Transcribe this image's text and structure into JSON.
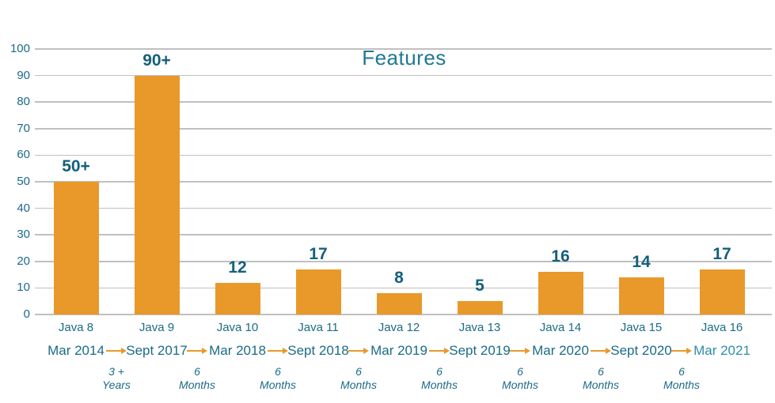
{
  "colors": {
    "bar": "#E8992A",
    "arrow": "#E8992A",
    "teal": "#1B6B87",
    "teal_dark": "#14607C",
    "title_teal": "#1F7893",
    "date_highlight": "#2F8DA8",
    "gridline": "#C0C0C0"
  },
  "chart_data": {
    "type": "bar",
    "title": "Features",
    "categories": [
      "Java 8",
      "Java 9",
      "Java 10",
      "Java 11",
      "Java 12",
      "Java 13",
      "Java 14",
      "Java 15",
      "Java 16"
    ],
    "values": [
      50,
      90,
      12,
      17,
      8,
      5,
      16,
      14,
      17
    ],
    "value_labels": [
      "50+",
      "90+",
      "12",
      "17",
      "8",
      "5",
      "16",
      "14",
      "17"
    ],
    "xlabel": "",
    "ylabel": "",
    "ylim": [
      0,
      100
    ],
    "ytick_step": 10,
    "yticks": [
      100,
      90,
      80,
      70,
      60,
      50,
      40,
      30,
      20,
      10,
      0
    ],
    "grid": true,
    "legend": false,
    "timeline": {
      "dates": [
        "Mar 2014",
        "Sept 2017",
        "Mar 2018",
        "Sept 2018",
        "Mar 2019",
        "Sept 2019",
        "Mar 2020",
        "Sept 2020",
        "Mar 2021"
      ],
      "highlight_index": 8,
      "gaps": [
        {
          "line1": "3 +",
          "line2": "Years"
        },
        {
          "line1": "6",
          "line2": "Months"
        },
        {
          "line1": "6",
          "line2": "Months"
        },
        {
          "line1": "6",
          "line2": "Months"
        },
        {
          "line1": "6",
          "line2": "Months"
        },
        {
          "line1": "6",
          "line2": "Months"
        },
        {
          "line1": "6",
          "line2": "Months"
        },
        {
          "line1": "6",
          "line2": "Months"
        }
      ]
    }
  }
}
